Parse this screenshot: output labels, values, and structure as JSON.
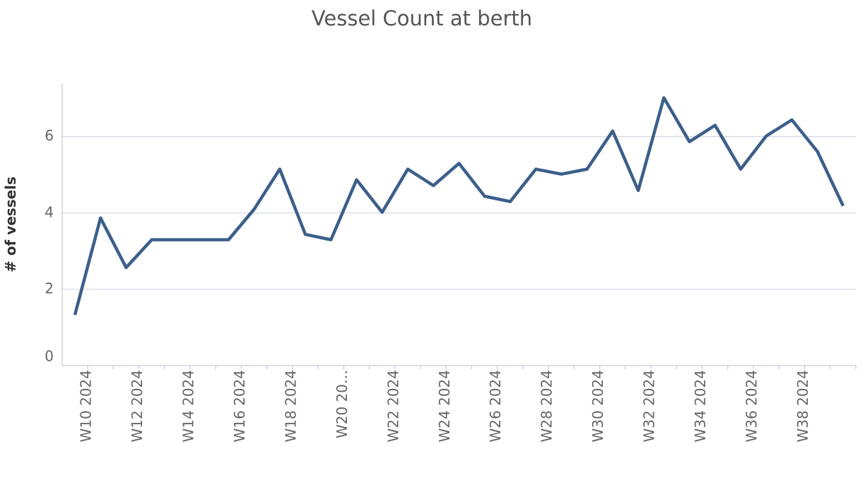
{
  "chart_data": {
    "type": "line",
    "title": "Vessel Count at berth",
    "y_label": "# of vessels",
    "categories": [
      "W10 2024",
      null,
      "W12 2024",
      null,
      "W14 2024",
      null,
      "W16 2024",
      null,
      "W18 2024",
      null,
      "W20 20…",
      null,
      "W22 2024",
      null,
      "W24 2024",
      null,
      "W26 2024",
      null,
      "W28 2024",
      null,
      "W30 2024",
      null,
      "W32 2024",
      null,
      "W34 2024",
      null,
      "W36 2024",
      null,
      "W38 2024",
      null,
      null
    ],
    "series": [
      {
        "name": "# of vessels",
        "color": "#3c5f8a",
        "values": [
          1.33,
          3.87,
          2.57,
          3.3,
          3.3,
          3.3,
          3.3,
          4.1,
          5.15,
          3.44,
          3.3,
          4.87,
          4.02,
          5.15,
          4.72,
          5.3,
          4.44,
          4.3,
          5.15,
          5.02,
          5.15,
          6.15,
          4.59,
          7.02,
          5.87,
          6.3,
          5.15,
          6.02,
          6.44,
          5.61,
          4.19
        ]
      }
    ],
    "ylim": [
      0,
      7.4
    ],
    "yticks": [
      0,
      2,
      4,
      6
    ],
    "grid": true
  }
}
